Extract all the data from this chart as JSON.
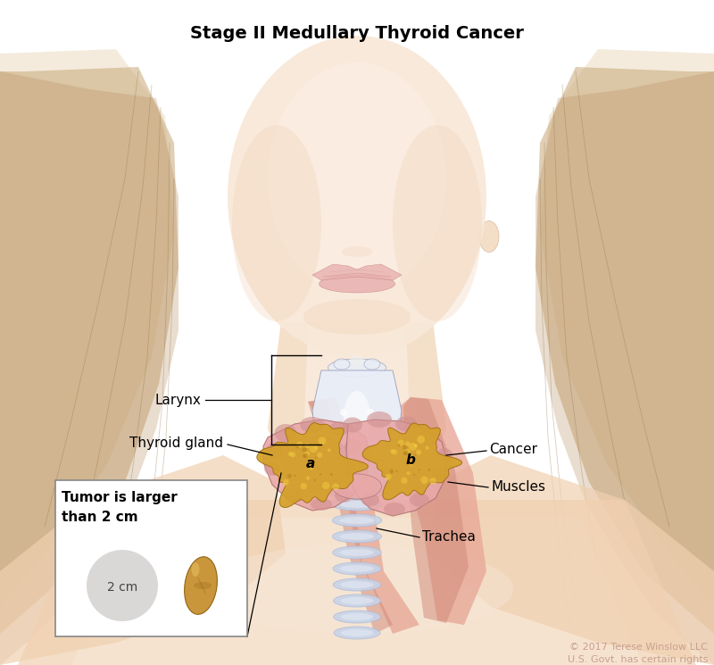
{
  "title": "Stage II Medullary Thyroid Cancer",
  "title_fontsize": 14,
  "title_fontweight": "bold",
  "bg_color": "#ffffff",
  "copyright_text": "© 2017 Terese Winslow LLC\nU.S. Govt. has certain rights",
  "copyright_color": "#c8a090",
  "copyright_fontsize": 8,
  "labels": {
    "larynx": "Larynx",
    "thyroid_gland": "Thyroid gland",
    "cancer": "Cancer",
    "muscles": "Muscles",
    "trachea": "Trachea"
  },
  "inset": {
    "title_line1": "Tumor is larger",
    "title_line2": "than 2 cm",
    "circle_label": "2 cm",
    "circle_color": "#d4d0d0",
    "peanut_color": "#c89030",
    "peanut_dark": "#8b6010",
    "peanut_highlight": "#e8c060"
  },
  "skin_light": "#f8e8d8",
  "skin_mid": "#f0d0b0",
  "skin_dark": "#e8b888",
  "skin_shadow": "#d8a070",
  "hair_base": "#c8a878",
  "hair_mid": "#b89060",
  "hair_dark": "#907040",
  "hair_light": "#e0c8a0",
  "lip_color": "#e8b0b0",
  "lip_dark": "#c88888",
  "larynx_base": "#c8d4e8",
  "larynx_light": "#e8eef8",
  "larynx_dark": "#9098b8",
  "thyroid_base": "#d09090",
  "thyroid_light": "#e8a8a8",
  "thyroid_dark": "#b07070",
  "thyroid_shadow": "#906060",
  "muscle_color": "#d08878",
  "muscle_light": "#e8a898",
  "muscle_dark": "#b06858",
  "trachea_base": "#c8d4e8",
  "trachea_ring": "#b0bcda",
  "cancer_base": "#d4a028",
  "cancer_light": "#f0c840",
  "cancer_dark": "#a07010",
  "label_fontsize": 11,
  "label_color": "#000000",
  "line_color": "#000000",
  "inset_border": "#888888"
}
